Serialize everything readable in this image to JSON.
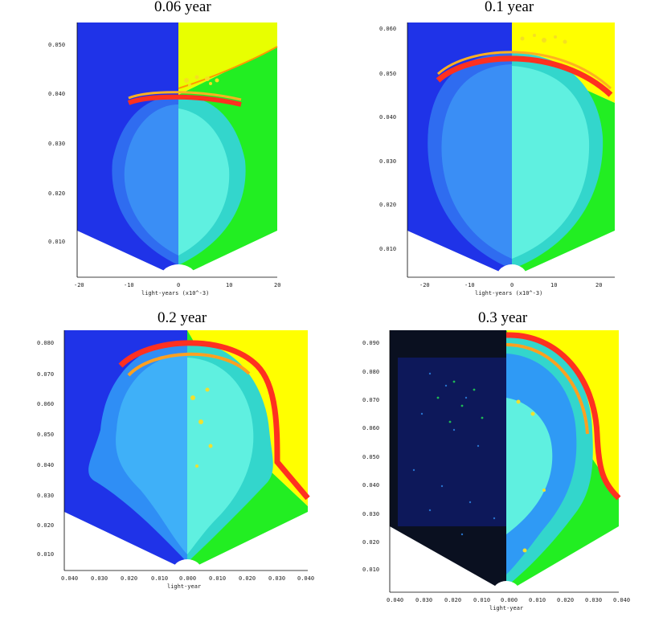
{
  "panels": [
    {
      "title": "0.06 year",
      "yticks": [
        "0.050",
        "0.040",
        "0.030",
        "0.020",
        "0.010"
      ],
      "xticks": [
        "-20",
        "-10",
        "0",
        "10",
        "20"
      ],
      "xlabel": "light-years (x10^-3)"
    },
    {
      "title": "0.1 year",
      "yticks": [
        "0.060",
        "0.050",
        "0.040",
        "0.030",
        "0.020",
        "0.010"
      ],
      "xticks": [
        "-20",
        "-10",
        "0",
        "10",
        "20"
      ],
      "xlabel": "light-years (x10^-3)"
    },
    {
      "title": "0.2 year",
      "yticks": [
        "0.080",
        "0.070",
        "0.060",
        "0.050",
        "0.040",
        "0.030",
        "0.020",
        "0.010"
      ],
      "xticks": [
        "0.040",
        "0.030",
        "0.020",
        "0.010",
        "0.000",
        "0.010",
        "0.020",
        "0.030",
        "0.040"
      ],
      "xlabel": "light-year"
    },
    {
      "title": "0.3 year",
      "yticks": [
        "0.090",
        "0.080",
        "0.070",
        "0.060",
        "0.050",
        "0.040",
        "0.030",
        "0.020",
        "0.010"
      ],
      "xticks": [
        "0.040",
        "0.030",
        "0.020",
        "0.010",
        "0.000",
        "0.010",
        "0.020",
        "0.030",
        "0.040"
      ],
      "xlabel": "light-year"
    }
  ],
  "colors": {
    "left_background": "#1f33e8",
    "ambient_right_upper": "#ffff00",
    "ambient_right_lower": "#22ee22",
    "shell": "#ff3020",
    "interior": "#33d6cc"
  }
}
